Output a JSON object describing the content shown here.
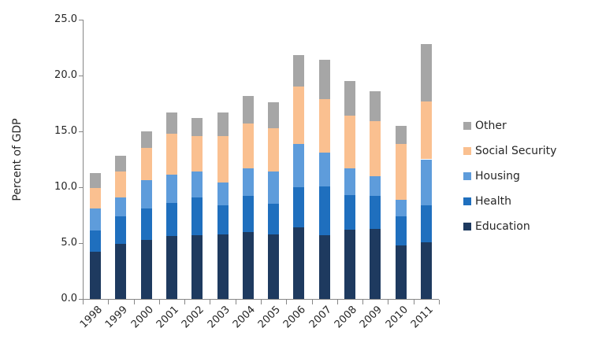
{
  "chart_data": {
    "type": "bar",
    "stacked": true,
    "title": "",
    "xlabel": "",
    "ylabel": "Percent of GDP",
    "ylim": [
      0,
      25
    ],
    "ytick_step": 5,
    "ytick_labels": [
      "0.0",
      "5.0",
      "10.0",
      "15.0",
      "20.0",
      "25.0"
    ],
    "grid": false,
    "legend_position": "right",
    "legend_order": [
      "Other",
      "Social Security",
      "Housing",
      "Health",
      "Education"
    ],
    "categories": [
      "1998",
      "1999",
      "2000",
      "2001",
      "2002",
      "2003",
      "2004",
      "2005",
      "2006",
      "2007",
      "2008",
      "2009",
      "2010",
      "2011"
    ],
    "series": [
      {
        "name": "Education",
        "color": "#1E3A5F",
        "values": [
          4.2,
          4.9,
          5.3,
          5.6,
          5.7,
          5.8,
          6.0,
          5.8,
          6.4,
          5.7,
          6.2,
          6.3,
          4.8,
          5.1
        ]
      },
      {
        "name": "Health",
        "color": "#1F6FBE",
        "values": [
          1.9,
          2.5,
          2.8,
          3.0,
          3.4,
          2.6,
          3.2,
          2.7,
          3.6,
          4.4,
          3.1,
          2.9,
          2.6,
          3.3
        ]
      },
      {
        "name": "Housing",
        "color": "#5E9CDB",
        "values": [
          2.0,
          1.7,
          2.5,
          2.5,
          2.3,
          2.0,
          2.5,
          2.9,
          3.9,
          3.0,
          2.4,
          1.8,
          1.5,
          4.1
        ]
      },
      {
        "name": "Social Security",
        "color": "#FAC090",
        "values": [
          1.8,
          2.3,
          2.9,
          3.7,
          3.2,
          4.2,
          4.0,
          3.9,
          5.1,
          4.8,
          4.7,
          4.9,
          5.0,
          5.2
        ]
      },
      {
        "name": "Other",
        "color": "#A6A6A6",
        "values": [
          1.4,
          1.4,
          1.5,
          1.9,
          1.6,
          2.1,
          2.5,
          2.3,
          2.8,
          3.5,
          3.1,
          2.7,
          1.6,
          5.1
        ]
      }
    ]
  },
  "style": {
    "axis_color": "#868686",
    "text_color": "#262626",
    "background": "#FFFFFF"
  }
}
